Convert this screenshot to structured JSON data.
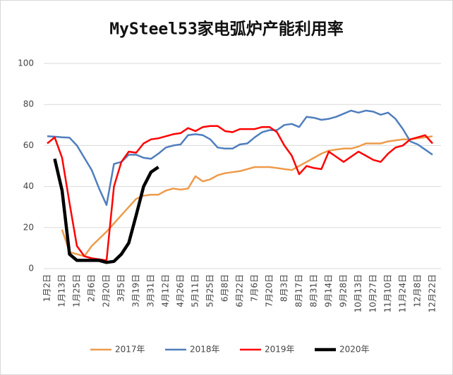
{
  "chart_data": {
    "type": "line",
    "title": "MySteel53家电弧炉产能利用率",
    "categories": [
      "1月2日",
      null,
      "1月13日",
      null,
      "1月25日",
      null,
      "2月6日",
      null,
      "2月20日",
      null,
      "3月5日",
      null,
      "3月19日",
      null,
      "3月31日",
      null,
      "4月12日",
      null,
      "4月26日",
      null,
      "5月11日",
      null,
      "5月25日",
      null,
      "6月8日",
      null,
      "6月22日",
      null,
      "7月6日",
      null,
      "7月20日",
      null,
      "8月3日",
      null,
      "8月17日",
      null,
      "8月31日",
      null,
      "9月14日",
      null,
      "9月28日",
      null,
      "10月13日",
      null,
      "10月27日",
      null,
      "11月10日",
      null,
      "11月24日",
      null,
      "12月8日",
      null,
      "12月22日"
    ],
    "series": [
      {
        "name": "2017年",
        "color": "#ed9b4b",
        "values": [
          null,
          null,
          19,
          8,
          7,
          6,
          11,
          14.5,
          18,
          22,
          26,
          30,
          34,
          35.5,
          36,
          36,
          38,
          39,
          38.5,
          39,
          45,
          42.5,
          43.5,
          45.5,
          46.5,
          47,
          47.5,
          48.5,
          49.5,
          49.5,
          49.5,
          49,
          48.5,
          48,
          50,
          52,
          54,
          56,
          57.5,
          58,
          58.5,
          58.5,
          59.5,
          61,
          61,
          61,
          62,
          62.5,
          63,
          63,
          63.5,
          64,
          64.5
        ]
      },
      {
        "name": "2018年",
        "color": "#4f7ebd",
        "values": [
          64.5,
          64.3,
          64,
          63.8,
          60,
          54,
          48,
          39,
          31,
          51,
          52,
          55.5,
          55.5,
          54,
          53.5,
          56,
          59,
          60,
          60.5,
          65,
          65.5,
          65,
          63,
          59,
          58.5,
          58.5,
          60.5,
          61,
          64,
          66.5,
          67.5,
          67.5,
          70,
          70.5,
          69,
          74,
          73.5,
          72.5,
          73,
          74,
          75.5,
          77,
          76,
          77,
          76.5,
          75,
          76,
          73,
          68,
          62,
          60.5,
          58,
          55.5
        ]
      },
      {
        "name": "2019年",
        "color": "#ff0000",
        "values": [
          61,
          64,
          54,
          32,
          11,
          6,
          5,
          4.5,
          4,
          40,
          52,
          57,
          56.5,
          61,
          63,
          63.5,
          64.5,
          65.5,
          66,
          68.5,
          67,
          69,
          69.5,
          69.5,
          67,
          66.5,
          68,
          68,
          68,
          69,
          69,
          66.5,
          60,
          55,
          46,
          50,
          49,
          48.5,
          57,
          54.5,
          52,
          54.5,
          57,
          55,
          53,
          52,
          56,
          59,
          60,
          63,
          64,
          65,
          61
        ]
      },
      {
        "name": "2020年",
        "color": "#000000",
        "values": [
          null,
          53.5,
          38,
          7,
          4,
          4,
          4,
          4,
          3,
          3.5,
          7,
          12.5,
          26,
          40,
          47,
          49.5,
          null,
          null,
          null,
          null,
          null,
          null,
          null,
          null,
          null,
          null,
          null,
          null,
          null,
          null,
          null,
          null,
          null,
          null,
          null,
          null,
          null,
          null,
          null,
          null,
          null,
          null,
          null,
          null,
          null,
          null,
          null,
          null,
          null,
          null,
          null,
          null,
          null
        ]
      }
    ],
    "ylim": [
      0,
      100
    ],
    "yticks": [
      0,
      20,
      40,
      60,
      80,
      100
    ],
    "grid": true,
    "legend": "bottom"
  }
}
